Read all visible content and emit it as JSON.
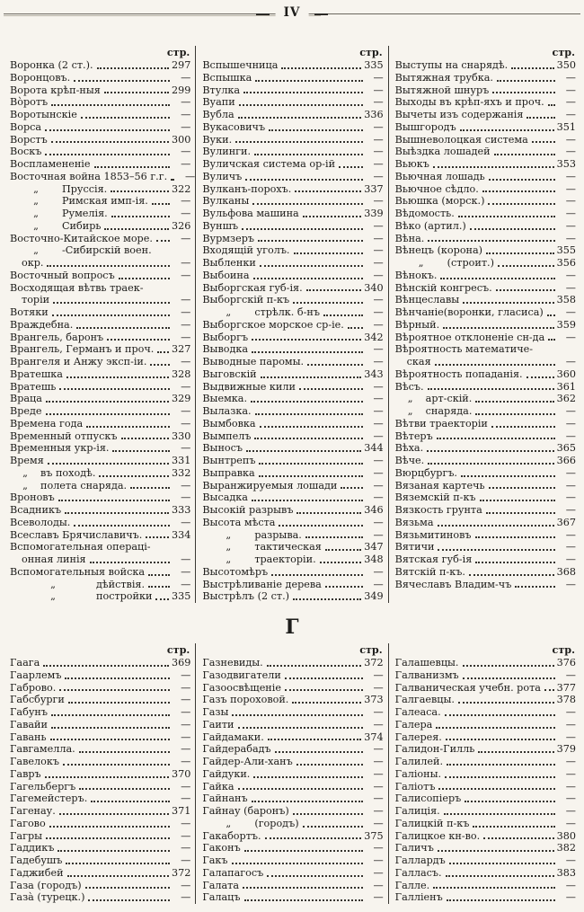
{
  "page": {
    "number": "IV"
  },
  "ditto_mark": "„",
  "sections": [
    {
      "letter": null,
      "col_header": "стр.",
      "columns": [
        {
          "entries": [
            {
              "t": "Воронка (2 ст.).",
              "p": "297"
            },
            {
              "t": "Воронцовъ.",
              "p": "—"
            },
            {
              "t": "Ворота крѣп-ныя",
              "p": "299"
            },
            {
              "t": "Вòротъ",
              "p": "—"
            },
            {
              "t": "Воротынскіе",
              "p": "—"
            },
            {
              "t": "Ворса",
              "p": "—"
            },
            {
              "t": "Ворстъ",
              "p": "300"
            },
            {
              "t": "Воскъ",
              "p": "—"
            },
            {
              "t": "Воспламененіе",
              "p": "—"
            },
            {
              "t": "Восточная война 1853–56 г.г.",
              "p": "—"
            },
            {
              "t": "Пруссія.",
              "p": "322",
              "sub": "m"
            },
            {
              "t": "Римская имп-ія.",
              "p": "—",
              "sub": "m"
            },
            {
              "t": "Румелія.",
              "p": "—",
              "sub": "m"
            },
            {
              "t": "Сибирь",
              "p": "326",
              "sub": "m"
            },
            {
              "t": "Восточно-Китайское море.",
              "p": "—"
            },
            {
              "t": "-Сибирскій воен.",
              "sub": "m",
              "nl": true
            },
            {
              "t": "окр.",
              "p": "—",
              "ind": 1
            },
            {
              "t": "Восточный вопросъ",
              "p": "—"
            },
            {
              "t": "Восходящая вѣтвь траек-",
              "nl": true
            },
            {
              "t": "торіи",
              "p": "—",
              "ind": 1
            },
            {
              "t": "Вотяки",
              "p": "—"
            },
            {
              "t": "Враждебна.",
              "p": "—"
            },
            {
              "t": "Врангель, баронъ",
              "p": "—"
            },
            {
              "t": "Врангель, Германъ и проч.",
              "p": "327"
            },
            {
              "t": "Врангеля и Анжу эксп-іи.",
              "p": "—"
            },
            {
              "t": "Вратешка",
              "p": "328"
            },
            {
              "t": "Вратешь",
              "p": "—"
            },
            {
              "t": "Враца",
              "p": "329"
            },
            {
              "t": "Вреде",
              "p": "—"
            },
            {
              "t": "Времена года",
              "p": "—"
            },
            {
              "t": "Временный отпускъ",
              "p": "330"
            },
            {
              "t": "Временныя укр-ія.",
              "p": "—"
            },
            {
              "t": "Время",
              "p": "331"
            },
            {
              "t": "въ походѣ.",
              "p": "332",
              "sub": "s"
            },
            {
              "t": "полета снаряда.",
              "p": "—",
              "sub": "s"
            },
            {
              "t": "Вроновъ",
              "p": "—"
            },
            {
              "t": "Всадникъ",
              "p": "333"
            },
            {
              "t": "Всеволоды.",
              "p": "—"
            },
            {
              "t": "Всеславъ Брячиславичъ.",
              "p": "334"
            },
            {
              "t": "Вспомогательная операці-",
              "nl": true
            },
            {
              "t": "онная линія",
              "p": "—",
              "ind": 1
            },
            {
              "t": "Вспомогательныя войска",
              "p": "—"
            },
            {
              "t": "дѣйствія.",
              "p": "—",
              "sub": "l"
            },
            {
              "t": "постройки",
              "p": "335",
              "sub": "l"
            }
          ]
        },
        {
          "entries": [
            {
              "t": "Вспышечница",
              "p": "335"
            },
            {
              "t": "Вспышка",
              "p": "—"
            },
            {
              "t": "Втулка",
              "p": "—"
            },
            {
              "t": "Вуапи",
              "p": "—"
            },
            {
              "t": "Вубла",
              "p": "336"
            },
            {
              "t": "Вукасовичъ",
              "p": "—"
            },
            {
              "t": "Вуки.",
              "p": "—"
            },
            {
              "t": "Вулинги.",
              "p": "—"
            },
            {
              "t": "Вуличская система ор-ій",
              "p": "—"
            },
            {
              "t": "Вуличъ",
              "p": "—"
            },
            {
              "t": "Вулканъ-порохъ.",
              "p": "337"
            },
            {
              "t": "Вулканы",
              "p": "—"
            },
            {
              "t": "Вульфова машина",
              "p": "339"
            },
            {
              "t": "Вуншъ",
              "p": "—"
            },
            {
              "t": "Вурмзеръ",
              "p": "—"
            },
            {
              "t": "Входящій уголъ.",
              "p": "—"
            },
            {
              "t": "Выбленки",
              "p": "—"
            },
            {
              "t": "Выбоина",
              "p": "—"
            },
            {
              "t": "Выборгская губ-ія.",
              "p": "340"
            },
            {
              "t": "Выборгскій п-къ",
              "p": "—"
            },
            {
              "t": "стрѣлк. б-нъ",
              "p": "—",
              "sub": "m"
            },
            {
              "t": "Выборгское морское ср-іе.",
              "p": "—"
            },
            {
              "t": "Выборгъ",
              "p": "342"
            },
            {
              "t": "Выводка",
              "p": "—"
            },
            {
              "t": "Выводные паромы.",
              "p": "—"
            },
            {
              "t": "Выговскій",
              "p": "343"
            },
            {
              "t": "Выдвижные кили",
              "p": "—"
            },
            {
              "t": "Выемка.",
              "p": "—"
            },
            {
              "t": "Вылазка.",
              "p": "—"
            },
            {
              "t": "Вымбовка",
              "p": "—"
            },
            {
              "t": "Вымпелъ",
              "p": "—"
            },
            {
              "t": "Выносъ",
              "p": "344"
            },
            {
              "t": "Вынтрепъ",
              "p": "—"
            },
            {
              "t": "Выправка",
              "p": "—"
            },
            {
              "t": "Выранжируемыя лошади",
              "p": "—"
            },
            {
              "t": "Высадка",
              "p": "—"
            },
            {
              "t": "Высокій разрывъ",
              "p": "346"
            },
            {
              "t": "Высота мѣста",
              "p": "—"
            },
            {
              "t": "разрыва.",
              "p": "—",
              "sub": "m"
            },
            {
              "t": "тактическая",
              "p": "347",
              "sub": "m"
            },
            {
              "t": "траекторіи.",
              "p": "348",
              "sub": "m"
            },
            {
              "t": "Высотомѣръ",
              "p": "—"
            },
            {
              "t": "Выстрѣливаніе дерева",
              "p": "—"
            },
            {
              "t": "Выстрѣлъ (2 ст.)",
              "p": "349"
            }
          ]
        },
        {
          "entries": [
            {
              "t": "Выступы на снарядѣ.",
              "p": "350"
            },
            {
              "t": "Вытяжная трубка.",
              "p": "—"
            },
            {
              "t": "Вытяжной шнуръ",
              "p": "—"
            },
            {
              "t": "Выходы въ крѣп-яхъ и проч.",
              "p": "—"
            },
            {
              "t": "Вычеты изъ содержанія",
              "p": "—"
            },
            {
              "t": "Вышгородъ",
              "p": "351"
            },
            {
              "t": "Вышневолоцкая система",
              "p": "—"
            },
            {
              "t": "Выѣздка лошадей",
              "p": "—"
            },
            {
              "t": "Вьюкъ",
              "p": "353"
            },
            {
              "t": "Вьючная лошадь",
              "p": "—"
            },
            {
              "t": "Вьючное сѣдло.",
              "p": "—"
            },
            {
              "t": "Вьюшка (морск.)",
              "p": "—"
            },
            {
              "t": "Вѣдомость.",
              "p": "—"
            },
            {
              "t": "Вѣко (артил.)",
              "p": "—"
            },
            {
              "t": "Вѣна.",
              "p": "—"
            },
            {
              "t": "Вѣнецъ (корона)",
              "p": "355"
            },
            {
              "t": "(строит.)",
              "p": "356",
              "sub": "m"
            },
            {
              "t": "Вѣнокъ.",
              "p": "—"
            },
            {
              "t": "Вѣнскій конгресъ.",
              "p": "—"
            },
            {
              "t": "Вѣнцеславы",
              "p": "358"
            },
            {
              "t": "Вѣнчаніе(воронки, гласиса)",
              "p": "—"
            },
            {
              "t": "Вѣрный.",
              "p": "359"
            },
            {
              "t": "Вѣроятное отклоненіе сн-да",
              "p": "—"
            },
            {
              "t": "Вѣроятность математиче-",
              "nl": true
            },
            {
              "t": "ская",
              "p": "—",
              "ind": 1
            },
            {
              "t": "Вѣроятность попаданія.",
              "p": "360"
            },
            {
              "t": "Вѣсъ.",
              "p": "361"
            },
            {
              "t": "арт-скій.",
              "p": "362",
              "sub": "s"
            },
            {
              "t": "снаряда.",
              "p": "—",
              "sub": "s"
            },
            {
              "t": "Вѣтви траекторіи",
              "p": "—"
            },
            {
              "t": "Вѣтеръ",
              "p": "—"
            },
            {
              "t": "Вѣха.",
              "p": "365"
            },
            {
              "t": "Вѣче.",
              "p": "366"
            },
            {
              "t": "Вюрцбургъ.",
              "p": "—"
            },
            {
              "t": "Вязаная картечь",
              "p": "—"
            },
            {
              "t": "Вяземскій п-къ",
              "p": "—"
            },
            {
              "t": "Вязкость грунта",
              "p": "—"
            },
            {
              "t": "Вязьма",
              "p": "367"
            },
            {
              "t": "Вязьмитиновъ",
              "p": "—"
            },
            {
              "t": "Вятичи",
              "p": "—"
            },
            {
              "t": "Вятская губ-ія",
              "p": "—"
            },
            {
              "t": "Вятскій п-къ.",
              "p": "368"
            },
            {
              "t": "Вячеславъ Владим-чъ",
              "p": "—"
            }
          ]
        }
      ]
    },
    {
      "letter": "Г",
      "col_header": "стр.",
      "columns": [
        {
          "entries": [
            {
              "t": "Гаага",
              "p": "369"
            },
            {
              "t": "Гаарлемъ",
              "p": "—"
            },
            {
              "t": "Габрово.",
              "p": "—"
            },
            {
              "t": "Габсбурги",
              "p": "—"
            },
            {
              "t": "Габунъ",
              "p": "—"
            },
            {
              "t": "Гавайи",
              "p": "—"
            },
            {
              "t": "Гавань",
              "p": "—"
            },
            {
              "t": "Гавгамелла.",
              "p": "—"
            },
            {
              "t": "Гавелокъ",
              "p": "—"
            },
            {
              "t": "Гавръ",
              "p": "370"
            },
            {
              "t": "Гагельбергъ",
              "p": "—"
            },
            {
              "t": "Гагемейстеръ.",
              "p": "—"
            },
            {
              "t": "Гагенау.",
              "p": "371"
            },
            {
              "t": "Гагово",
              "p": "—"
            },
            {
              "t": "Гагры",
              "p": "—"
            },
            {
              "t": "Гаддикъ",
              "p": "—"
            },
            {
              "t": "Гадебушъ",
              "p": "—"
            },
            {
              "t": "Гаджибей",
              "p": "372"
            },
            {
              "t": "Газа (городъ)",
              "p": "—"
            },
            {
              "t": "Газà (турецк.)",
              "p": "—"
            }
          ]
        },
        {
          "entries": [
            {
              "t": "Газневиды.",
              "p": "372"
            },
            {
              "t": "Газодвигатели",
              "p": "—"
            },
            {
              "t": "Газоосвѣщеніе",
              "p": "—"
            },
            {
              "t": "Газъ пороховой.",
              "p": "373"
            },
            {
              "t": "Газы",
              "p": "—"
            },
            {
              "t": "Гаити",
              "p": "—"
            },
            {
              "t": "Гайдамаки.",
              "p": "374"
            },
            {
              "t": "Гайдерабадъ",
              "p": "—"
            },
            {
              "t": "Гайдер-Али-ханъ",
              "p": "—"
            },
            {
              "t": "Гайдуки.",
              "p": "—"
            },
            {
              "t": "Гайка",
              "p": "—"
            },
            {
              "t": "Гайнанъ",
              "p": "—"
            },
            {
              "t": "Гайнау (баронъ)",
              "p": "—"
            },
            {
              "t": "(городъ)",
              "p": "—",
              "sub": "m"
            },
            {
              "t": "Гакабортъ.",
              "p": "375"
            },
            {
              "t": "Гаконъ",
              "p": "—"
            },
            {
              "t": "Гакъ",
              "p": "—"
            },
            {
              "t": "Галапагосъ",
              "p": "—"
            },
            {
              "t": "Галата",
              "p": "—"
            },
            {
              "t": "Галацъ",
              "p": "—"
            }
          ]
        },
        {
          "entries": [
            {
              "t": "Галашевцы.",
              "p": "376"
            },
            {
              "t": "Галванизмъ",
              "p": "—"
            },
            {
              "t": "Галваническая учебн. рота",
              "p": "377"
            },
            {
              "t": "Галгаевцы.",
              "p": "378"
            },
            {
              "t": "Галеаса.",
              "p": "—"
            },
            {
              "t": "Галера",
              "p": "—"
            },
            {
              "t": "Галерея.",
              "p": "—"
            },
            {
              "t": "Галидон-Гилль",
              "p": "379"
            },
            {
              "t": "Галилей.",
              "p": "—"
            },
            {
              "t": "Галіоны.",
              "p": "—"
            },
            {
              "t": "Галіотъ",
              "p": "—"
            },
            {
              "t": "Галисопіеръ",
              "p": "—"
            },
            {
              "t": "Галиція.",
              "p": "—"
            },
            {
              "t": "Галицкій п-къ",
              "p": "—"
            },
            {
              "t": "Галицкое кн-во.",
              "p": "380"
            },
            {
              "t": "Галичъ",
              "p": "382"
            },
            {
              "t": "Галлардъ",
              "p": "—"
            },
            {
              "t": "Галласъ.",
              "p": "383"
            },
            {
              "t": "Галле.",
              "p": "—"
            },
            {
              "t": "Галліенъ",
              "p": "—"
            }
          ]
        }
      ]
    }
  ]
}
